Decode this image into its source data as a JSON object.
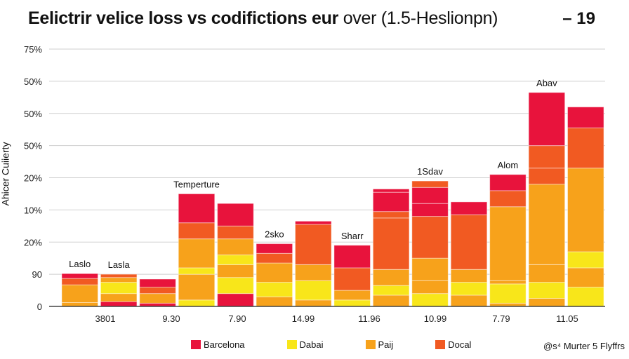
{
  "title": {
    "bold": "Eelictrir velice loss vs codifictions eur",
    "rest": " over (1.5-Heslionpn)",
    "badge": "– 19"
  },
  "credit": "@s⁴ Murter 5 Flyffrs",
  "colors": {
    "Barcelona": "#e8133c",
    "Dabai": "#f8e61a",
    "Paij": "#f7a21b",
    "Docal": "#f15a22",
    "grid": "#cfcfcf",
    "axis": "#444444"
  },
  "chart_data": {
    "type": "bar",
    "stacked": true,
    "title": "Eelictrir velice loss vs codifictions eur over (1.5-Heslionpn)",
    "ylabel": "Ahicer Cuiierty",
    "xlabel": "",
    "ytick_labels": [
      "0",
      "90",
      "20%",
      "10%",
      "20%",
      "50%",
      "50%",
      "50%",
      "75%"
    ],
    "ylim": [
      0,
      8
    ],
    "x_tick_labels": [
      "3801",
      "9.30",
      "7.90",
      "14.99",
      "11.96",
      "10.99",
      "7.79",
      "11.05"
    ],
    "legend": [
      "Barcelona",
      "Dabai",
      "Paij",
      "Docal"
    ],
    "legend_position": "bottom",
    "annotations": [
      {
        "bar": 0,
        "text": "Laslo"
      },
      {
        "bar": 1,
        "text": "Lasla"
      },
      {
        "bar": 3,
        "text": "Temperture"
      },
      {
        "bar": 5,
        "text": "2sko"
      },
      {
        "bar": 7,
        "text": "Sharr"
      },
      {
        "bar": 9,
        "text": "1Sdav"
      },
      {
        "bar": 11,
        "text": "Alom"
      },
      {
        "bar": 12,
        "text": "Abav"
      }
    ],
    "bars": [
      {
        "segments": [
          [
            "Paij",
            0.12
          ],
          [
            "Paij",
            0.55
          ],
          [
            "Docal",
            0.2
          ],
          [
            "Barcelona",
            0.15
          ]
        ]
      },
      {
        "segments": [
          [
            "Barcelona",
            0.15
          ],
          [
            "Paij",
            0.25
          ],
          [
            "Dabai",
            0.35
          ],
          [
            "Paij",
            0.15
          ],
          [
            "Docal",
            0.1
          ]
        ]
      },
      {
        "segments": [
          [
            "Barcelona",
            0.1
          ],
          [
            "Paij",
            0.3
          ],
          [
            "Docal",
            0.2
          ],
          [
            "Barcelona",
            0.25
          ]
        ]
      },
      {
        "segments": [
          [
            "Dabai",
            0.2
          ],
          [
            "Paij",
            0.8
          ],
          [
            "Dabai",
            0.2
          ],
          [
            "Paij",
            0.9
          ],
          [
            "Docal",
            0.5
          ],
          [
            "Barcelona",
            0.9
          ]
        ]
      },
      {
        "segments": [
          [
            "Barcelona",
            0.4
          ],
          [
            "Dabai",
            0.5
          ],
          [
            "Paij",
            0.4
          ],
          [
            "Dabai",
            0.3
          ],
          [
            "Paij",
            0.5
          ],
          [
            "Docal",
            0.4
          ],
          [
            "Barcelona",
            0.7
          ]
        ]
      },
      {
        "segments": [
          [
            "Paij",
            0.3
          ],
          [
            "Dabai",
            0.45
          ],
          [
            "Paij",
            0.6
          ],
          [
            "Docal",
            0.3
          ],
          [
            "Barcelona",
            0.3
          ]
        ]
      },
      {
        "segments": [
          [
            "Paij",
            0.2
          ],
          [
            "Dabai",
            0.6
          ],
          [
            "Paij",
            0.5
          ],
          [
            "Docal",
            1.25
          ],
          [
            "Barcelona",
            0.1
          ]
        ]
      },
      {
        "segments": [
          [
            "Dabai",
            0.2
          ],
          [
            "Paij",
            0.3
          ],
          [
            "Docal",
            0.7
          ],
          [
            "Barcelona",
            0.7
          ]
        ]
      },
      {
        "segments": [
          [
            "Paij",
            0.35
          ],
          [
            "Dabai",
            0.3
          ],
          [
            "Paij",
            0.5
          ],
          [
            "Docal",
            1.6
          ],
          [
            "Docal",
            0.2
          ],
          [
            "Barcelona",
            0.6
          ],
          [
            "Barcelona",
            0.1
          ]
        ]
      },
      {
        "segments": [
          [
            "Dabai",
            0.4
          ],
          [
            "Paij",
            0.4
          ],
          [
            "Paij",
            0.7
          ],
          [
            "Docal",
            1.3
          ],
          [
            "Barcelona",
            0.4
          ],
          [
            "Barcelona",
            0.5
          ],
          [
            "Docal",
            0.2
          ]
        ]
      },
      {
        "segments": [
          [
            "Paij",
            0.35
          ],
          [
            "Dabai",
            0.4
          ],
          [
            "Paij",
            0.4
          ],
          [
            "Docal",
            1.7
          ],
          [
            "Barcelona",
            0.4
          ]
        ]
      },
      {
        "segments": [
          [
            "Paij",
            0.1
          ],
          [
            "Dabai",
            0.6
          ],
          [
            "Paij",
            0.1
          ],
          [
            "Paij",
            2.3
          ],
          [
            "Docal",
            0.5
          ],
          [
            "Barcelona",
            0.5
          ]
        ]
      },
      {
        "segments": [
          [
            "Paij",
            0.25
          ],
          [
            "Dabai",
            0.5
          ],
          [
            "Paij",
            0.55
          ],
          [
            "Paij",
            2.5
          ],
          [
            "Docal",
            0.5
          ],
          [
            "Docal",
            0.7
          ],
          [
            "Barcelona",
            1.65
          ]
        ]
      },
      {
        "segments": [
          [
            "Dabai",
            0.6
          ],
          [
            "Paij",
            0.6
          ],
          [
            "Dabai",
            0.5
          ],
          [
            "Paij",
            2.6
          ],
          [
            "Docal",
            1.25
          ],
          [
            "Barcelona",
            0.65
          ]
        ]
      }
    ]
  }
}
